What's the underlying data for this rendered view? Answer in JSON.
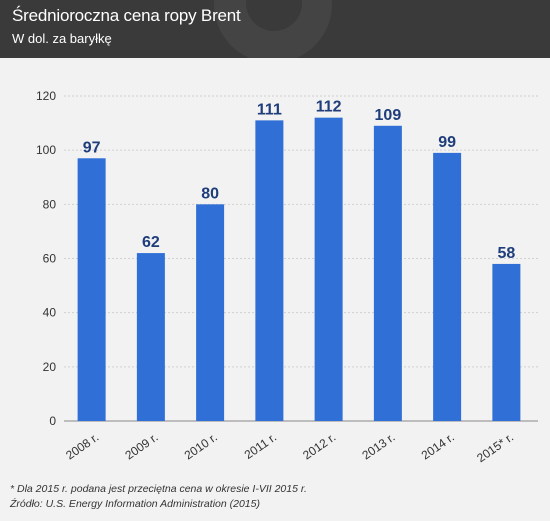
{
  "header": {
    "title": "Średnioroczna cena ropy Brent",
    "subtitle": "W dol. za baryłkę"
  },
  "colors": {
    "header_bg": "#3a3a3a",
    "bar": "#2f6fd6",
    "value_label": "#1e3d7a",
    "axis_text": "#333333",
    "grid": "#cfcfcf"
  },
  "chart_data": {
    "type": "bar",
    "categories": [
      "2008 r.",
      "2009 r.",
      "2010 r.",
      "2011 r.",
      "2012 r.",
      "2013 r.",
      "2014 r.",
      "2015* r."
    ],
    "values": [
      97,
      62,
      80,
      111,
      112,
      109,
      99,
      58
    ],
    "data_labels": [
      "97",
      "62",
      "80",
      "111",
      "112",
      "109",
      "99",
      "58"
    ],
    "ylim": [
      0,
      120
    ],
    "yticks": [
      0,
      20,
      40,
      60,
      80,
      100,
      120
    ],
    "grid": true,
    "legend": "none"
  },
  "footer": {
    "note": "* Dla 2015 r. podana jest przeciętna cena w okresie I-VII 2015 r.",
    "source": "Źródło: U.S. Energy Information Administration (2015)"
  }
}
